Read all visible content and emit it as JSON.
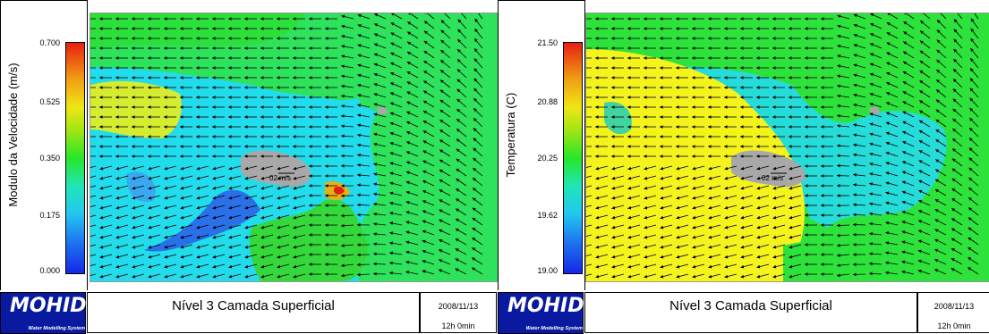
{
  "panels": [
    {
      "legend_title": "Modulo  da  Velocidade  (m/s)",
      "ticks": [
        "0.700",
        "0.525",
        "0.350",
        "0.175",
        "0.000"
      ],
      "scale_arrow_label": "02  m/s",
      "logo_text": "MOHID",
      "logo_subtext": "Water Modelling System",
      "title": "Nível 3 Camada Superficial",
      "date": "2008/11/13",
      "time": "12h 0min"
    },
    {
      "legend_title": "Temperatura  (C)",
      "ticks": [
        "21.50",
        "20.88",
        "20.25",
        "19.62",
        "19.00"
      ],
      "scale_arrow_label": "02  m/s",
      "logo_text": "MOHID",
      "logo_subtext": "Water Modelling System",
      "title": "Nível 3 Camada Superficial",
      "date": "2008/11/13",
      "time": "12h 0min"
    }
  ],
  "colors": {
    "colorbar_low": "#1428e6",
    "colorbar_high": "#e82010",
    "logo_background": "#0a1aa0",
    "land": "#a8a8a8",
    "arrow": "#000000"
  }
}
